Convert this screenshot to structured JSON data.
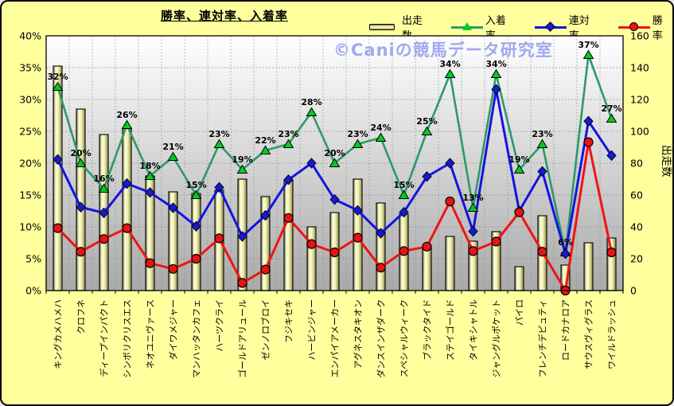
{
  "title": "勝率、連対率、入着率",
  "watermark": "©Caniの競馬データ研究室",
  "legend": [
    {
      "label": "出走数",
      "marker": "bar"
    },
    {
      "label": "入着率",
      "marker": "triangle"
    },
    {
      "label": "連対率",
      "marker": "diamond"
    },
    {
      "label": "勝率",
      "marker": "circle"
    }
  ],
  "colors": {
    "background": "#ffff9e",
    "plot_top": "#ffffff",
    "plot_bottom": "#a9a9a9",
    "grid": "#8c8c8c",
    "bar_edge_dark": "#6f6f2f",
    "bar_light": "#ffffdc",
    "bar_mid": "#f0f0b4",
    "bar_edge_right": "#8a8a40",
    "green_line": "#2e9966",
    "green_marker": "#00cc22",
    "blue_line": "#1414e0",
    "blue_marker": "#1a1acc",
    "red_line": "#f01414",
    "red_marker": "#e61414",
    "label_text": "#000000",
    "watermark": "#99a0ee"
  },
  "chart_data": {
    "type": "combo-bar-line",
    "title": "勝率、連対率、入着率",
    "legend_position": "top",
    "grid": true,
    "categories": [
      "キングカメハメハ",
      "クロフネ",
      "ディープインパクト",
      "シンボリクリスエス",
      "ネオユニヴァース",
      "ダイワメジャー",
      "マンハッタンカフェ",
      "ハーツクライ",
      "ゴールドアリュール",
      "ゼンノロブロイ",
      "フジキセキ",
      "ハービンジャー",
      "エンパイアメーカー",
      "アグネスタキオン",
      "ダンスインザダーク",
      "スペシャルウィーク",
      "ブラックタイド",
      "ステイゴールド",
      "タイキシャトル",
      "ジャングルポケット",
      "パイロ",
      "フレンチデピュティ",
      "ロードカナロア",
      "サウスヴィグラス",
      "ワイルドラッシュ"
    ],
    "left_axis": {
      "unit": "%",
      "min": 0,
      "max": 40,
      "tick_step": 5,
      "tick_labels": [
        "0%",
        "5%",
        "10%",
        "15%",
        "20%",
        "25%",
        "30%",
        "35%",
        "40%"
      ]
    },
    "right_axis": {
      "label": "出走数",
      "min": 0,
      "max": 160,
      "tick_step": 20,
      "tick_labels": [
        "0",
        "20",
        "40",
        "60",
        "80",
        "100",
        "120",
        "140",
        "160"
      ]
    },
    "series": [
      {
        "name": "出走数",
        "type": "bar",
        "axis": "right",
        "values": [
          141,
          114,
          98,
          102,
          72,
          62,
          61,
          63,
          70,
          59,
          69,
          40,
          49,
          70,
          55,
          48,
          27,
          34,
          31,
          37,
          15,
          47,
          16,
          30,
          33
        ]
      },
      {
        "name": "入着率",
        "type": "line",
        "marker": "triangle",
        "axis": "left",
        "unit": "%",
        "values": [
          32,
          20,
          16,
          26,
          18,
          21,
          15,
          23,
          19,
          22,
          23,
          28,
          20,
          23,
          24,
          15,
          25,
          34,
          13,
          34,
          19,
          23,
          6,
          37,
          27
        ],
        "point_labels": [
          "32%",
          "20%",
          "16%",
          "26%",
          "18%",
          "21%",
          "15%",
          "23%",
          "19%",
          "22%",
          "23%",
          "28%",
          "20%",
          "23%",
          "24%",
          "15%",
          "25%",
          "34%",
          "13%",
          "34%",
          "19%",
          "23%",
          "6%",
          "37%",
          "27%"
        ]
      },
      {
        "name": "連対率",
        "type": "line",
        "marker": "diamond",
        "axis": "left",
        "unit": "%",
        "values": [
          20.6,
          13.1,
          12.2,
          16.8,
          15.4,
          13,
          10.1,
          16.2,
          8.5,
          11.8,
          17.4,
          20,
          14.3,
          12.6,
          9,
          12.3,
          17.9,
          20,
          9.3,
          31.6,
          12.5,
          18.7,
          5.8,
          26.6,
          21.2
        ]
      },
      {
        "name": "勝率",
        "type": "line",
        "marker": "circle",
        "axis": "left",
        "unit": "%",
        "values": [
          9.8,
          6.1,
          8.1,
          9.8,
          4.3,
          3.4,
          5,
          8.2,
          1.2,
          3.3,
          11.4,
          7.3,
          6,
          8.3,
          3.6,
          6.2,
          6.9,
          14,
          6.2,
          7.7,
          12.3,
          6.1,
          0,
          23.3,
          6
        ]
      }
    ]
  }
}
